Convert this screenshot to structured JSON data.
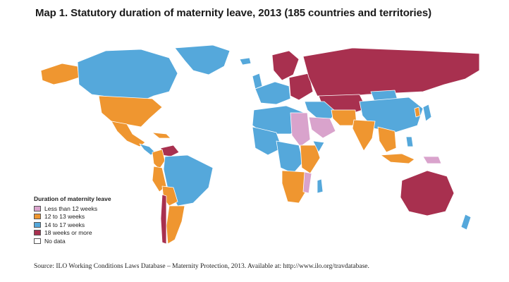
{
  "title": "Map 1.  Statutory duration of maternity leave, 2013 (185 countries and territories)",
  "colors": {
    "less_than_12": "#d9a3cc",
    "twelve_to_13": "#ef9630",
    "fourteen_to_17": "#55a8db",
    "eighteen_plus": "#a8304f",
    "no_data": "#ffffff"
  },
  "legend": {
    "title": "Duration of maternity leave",
    "items": [
      {
        "label": "Less than 12 weeks",
        "color": "#d9a3cc"
      },
      {
        "label": "12 to 13 weeks",
        "color": "#ef9630"
      },
      {
        "label": "14 to 17 weeks",
        "color": "#55a8db"
      },
      {
        "label": "18 weeks or more",
        "color": "#a8304f"
      },
      {
        "label": "No data",
        "color": "#ffffff"
      }
    ]
  },
  "source": "Source: ILO Working Conditions Laws Database – Maternity Protection, 2013. Available at: http://www.ilo.org/travdatabase."
}
